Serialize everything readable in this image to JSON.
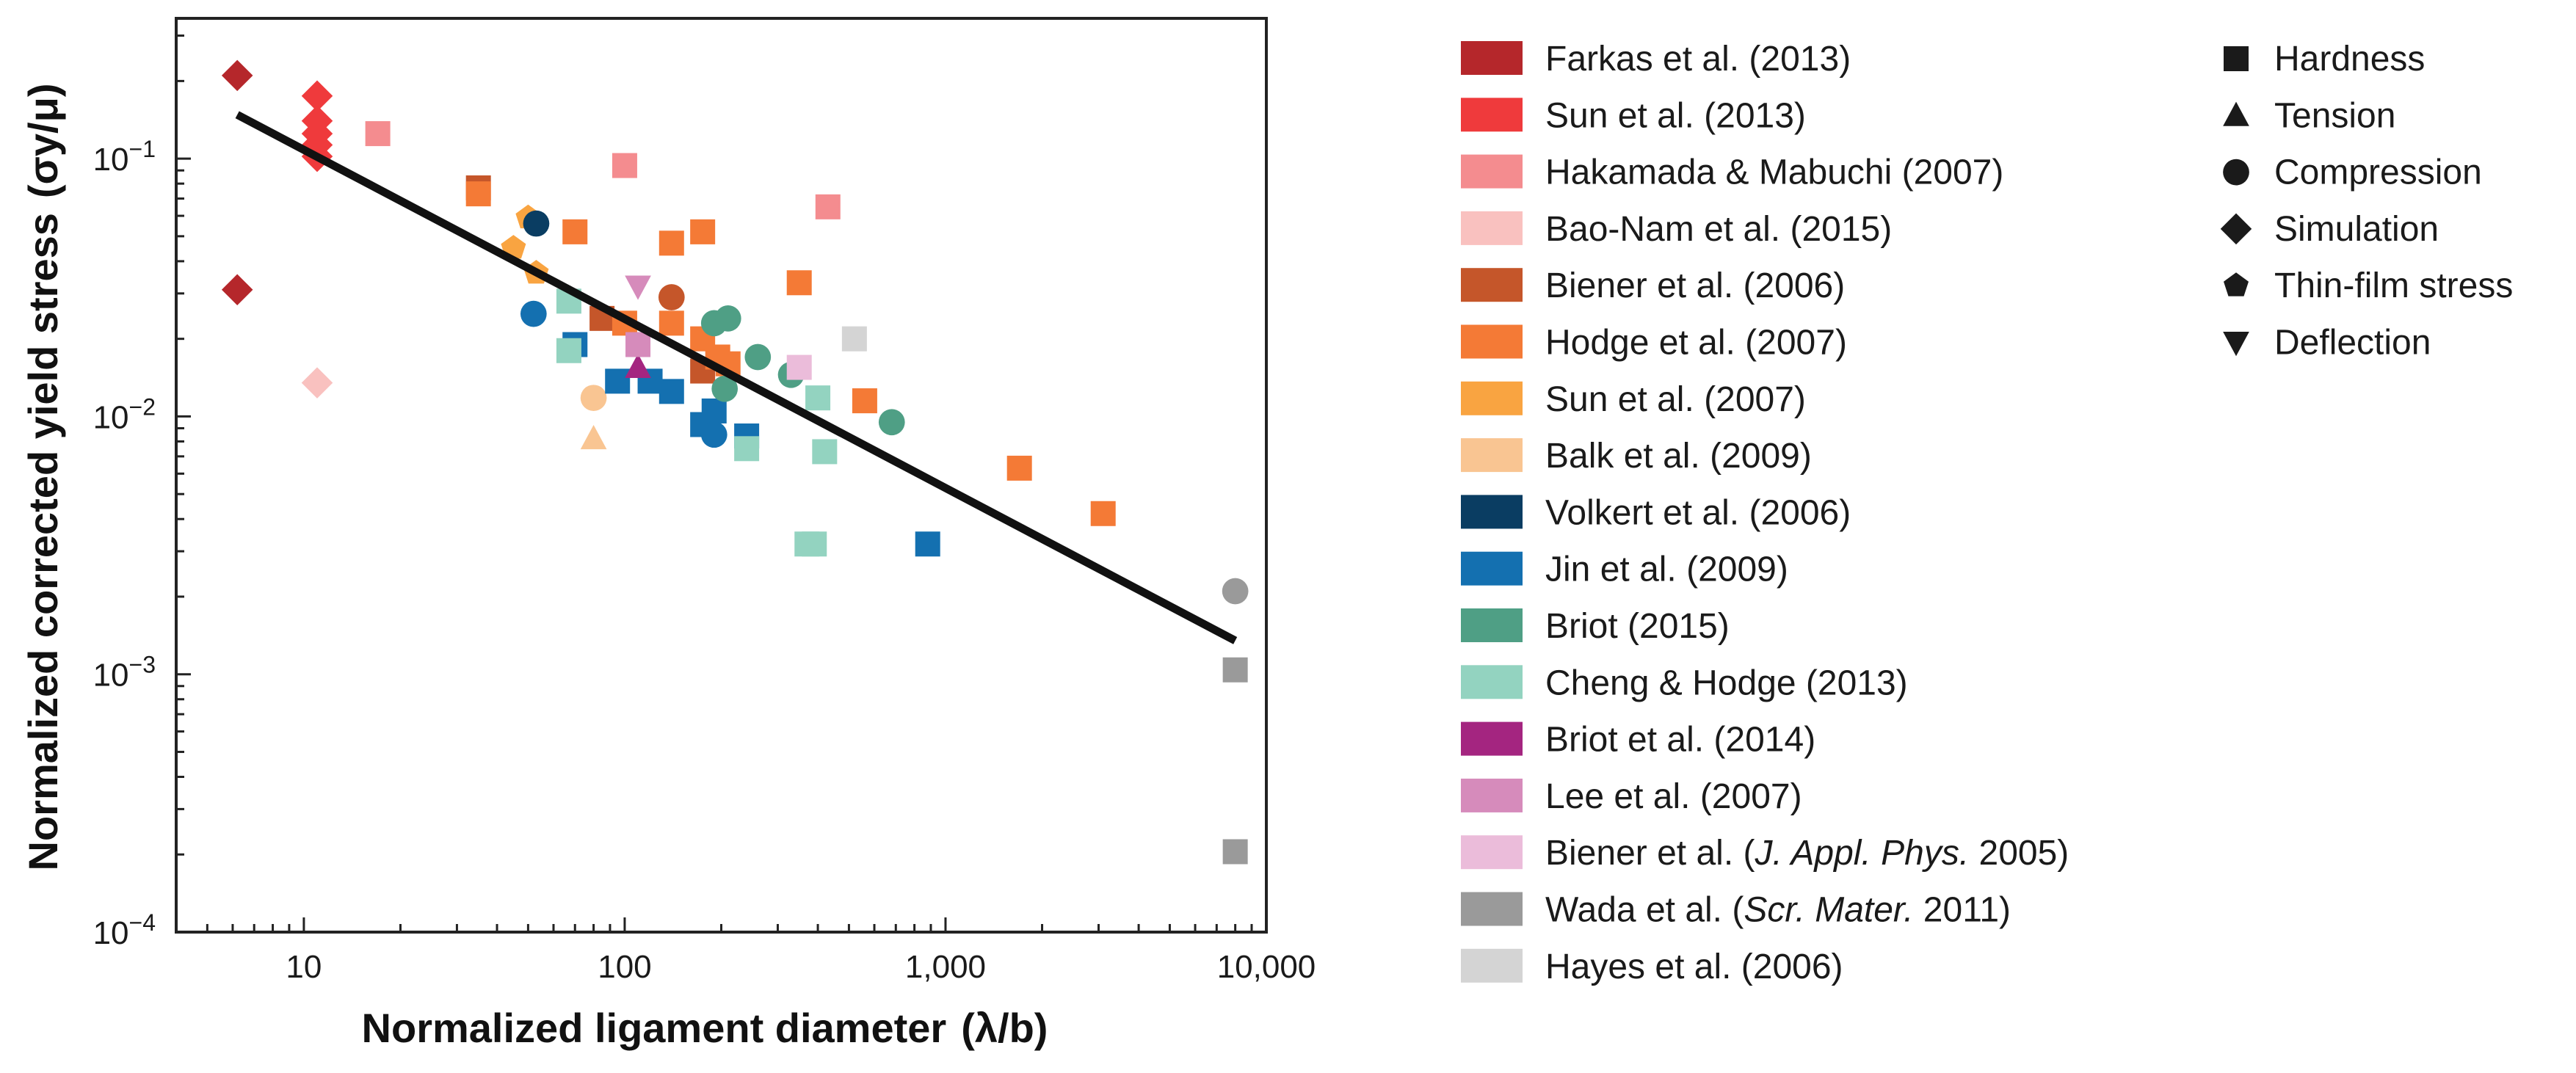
{
  "chart_data": {
    "type": "scatter",
    "xscale": "log",
    "yscale": "log",
    "xlim": [
      4,
      10000
    ],
    "ylim": [
      0.0001,
      0.35
    ],
    "xlabel": "Normalized ligament diameter",
    "xlabel_symbol": "(λ/b)",
    "ylabel": "Normalized corrected yield stress",
    "ylabel_symbol": "(σy/μ)",
    "x_ticks": [
      {
        "value": 10,
        "label": "10"
      },
      {
        "value": 100,
        "label": "100"
      },
      {
        "value": 1000,
        "label": "1,000"
      },
      {
        "value": 10000,
        "label": "10,000"
      }
    ],
    "y_ticks": [
      {
        "value": 0.0001,
        "base": "10",
        "exp": "−4"
      },
      {
        "value": 0.001,
        "base": "10",
        "exp": "−3"
      },
      {
        "value": 0.01,
        "base": "10",
        "exp": "−2"
      },
      {
        "value": 0.1,
        "base": "10",
        "exp": "−1"
      }
    ],
    "fit_line": {
      "x": [
        6.2,
        8000
      ],
      "y": [
        0.148,
        0.00135
      ]
    },
    "series": [
      {
        "name": "Farkas et al. (2013)",
        "label_main": "Farkas et al. (2013)",
        "color": "#b5272b",
        "points": [
          {
            "x": 6.2,
            "y": 0.21,
            "m": "diamond"
          },
          {
            "x": 6.2,
            "y": 0.031,
            "m": "diamond"
          }
        ]
      },
      {
        "name": "Sun et al. (2013)",
        "label_main": "Sun et al. (2013)",
        "color": "#ef3a3c",
        "points": [
          {
            "x": 11,
            "y": 0.175,
            "m": "diamond"
          },
          {
            "x": 11,
            "y": 0.14,
            "m": "diamond"
          },
          {
            "x": 11,
            "y": 0.125,
            "m": "diamond"
          },
          {
            "x": 11,
            "y": 0.113,
            "m": "diamond"
          },
          {
            "x": 11,
            "y": 0.102,
            "m": "diamond"
          }
        ]
      },
      {
        "name": "Hakamada & Mabuchi (2007)",
        "label_main": "Hakamada & Mabuchi (2007)",
        "color": "#f48c8f",
        "points": [
          {
            "x": 17,
            "y": 0.125,
            "m": "square"
          },
          {
            "x": 100,
            "y": 0.094,
            "m": "square"
          },
          {
            "x": 430,
            "y": 0.065,
            "m": "square"
          }
        ]
      },
      {
        "name": "Bao-Nam et al. (2015)",
        "label_main": "Bao-Nam et al. (2015)",
        "color": "#f9c1bf",
        "points": [
          {
            "x": 11,
            "y": 0.0135,
            "m": "diamond"
          }
        ]
      },
      {
        "name": "Biener et al. (2006)",
        "label_main": "Biener et al. (2006)",
        "color": "#c5562a",
        "points": [
          {
            "x": 35,
            "y": 0.077,
            "m": "square"
          },
          {
            "x": 85,
            "y": 0.024,
            "m": "square"
          },
          {
            "x": 140,
            "y": 0.029,
            "m": "circle"
          },
          {
            "x": 175,
            "y": 0.015,
            "m": "square"
          }
        ]
      },
      {
        "name": "Hodge et al. (2007)",
        "label_main": "Hodge et al. (2007)",
        "color": "#f47a36",
        "points": [
          {
            "x": 35,
            "y": 0.073,
            "m": "square"
          },
          {
            "x": 70,
            "y": 0.052,
            "m": "square"
          },
          {
            "x": 100,
            "y": 0.023,
            "m": "square"
          },
          {
            "x": 140,
            "y": 0.047,
            "m": "square"
          },
          {
            "x": 140,
            "y": 0.023,
            "m": "square"
          },
          {
            "x": 175,
            "y": 0.052,
            "m": "square"
          },
          {
            "x": 175,
            "y": 0.02,
            "m": "square"
          },
          {
            "x": 195,
            "y": 0.017,
            "m": "square"
          },
          {
            "x": 210,
            "y": 0.016,
            "m": "square"
          },
          {
            "x": 350,
            "y": 0.033,
            "m": "square"
          },
          {
            "x": 560,
            "y": 0.0115,
            "m": "square"
          },
          {
            "x": 1700,
            "y": 0.0063,
            "m": "square"
          },
          {
            "x": 3100,
            "y": 0.0042,
            "m": "square"
          }
        ]
      },
      {
        "name": "Sun et al. (2007)",
        "label_main": "Sun et al. (2007)",
        "color": "#f9a441",
        "points": [
          {
            "x": 45,
            "y": 0.045,
            "m": "pentagon"
          },
          {
            "x": 50,
            "y": 0.059,
            "m": "pentagon"
          },
          {
            "x": 53,
            "y": 0.036,
            "m": "pentagon"
          }
        ]
      },
      {
        "name": "Balk et al. (2009)",
        "label_main": "Balk et al. (2009)",
        "color": "#f9c592",
        "points": [
          {
            "x": 80,
            "y": 0.0118,
            "m": "circle"
          },
          {
            "x": 80,
            "y": 0.0082,
            "m": "tri-up"
          }
        ]
      },
      {
        "name": "Volkert et al. (2006)",
        "label_main": "Volkert et al. (2006)",
        "color": "#0a3d62",
        "points": [
          {
            "x": 53,
            "y": 0.056,
            "m": "circle"
          }
        ]
      },
      {
        "name": "Jin et al. (2009)",
        "label_main": "Jin et al. (2009)",
        "color": "#1470b0",
        "points": [
          {
            "x": 52,
            "y": 0.025,
            "m": "circle"
          },
          {
            "x": 70,
            "y": 0.019,
            "m": "square"
          },
          {
            "x": 95,
            "y": 0.0137,
            "m": "square"
          },
          {
            "x": 120,
            "y": 0.0137,
            "m": "square"
          },
          {
            "x": 140,
            "y": 0.0125,
            "m": "square"
          },
          {
            "x": 175,
            "y": 0.0093,
            "m": "square"
          },
          {
            "x": 190,
            "y": 0.0105,
            "m": "square"
          },
          {
            "x": 190,
            "y": 0.0085,
            "m": "circle"
          },
          {
            "x": 240,
            "y": 0.0084,
            "m": "square"
          },
          {
            "x": 880,
            "y": 0.0032,
            "m": "square"
          }
        ]
      },
      {
        "name": "Briot (2015)",
        "label_main": "Briot (2015)",
        "color": "#4f9f85",
        "points": [
          {
            "x": 190,
            "y": 0.023,
            "m": "circle"
          },
          {
            "x": 210,
            "y": 0.024,
            "m": "circle"
          },
          {
            "x": 205,
            "y": 0.0128,
            "m": "circle"
          },
          {
            "x": 260,
            "y": 0.017,
            "m": "circle"
          },
          {
            "x": 330,
            "y": 0.0145,
            "m": "circle"
          },
          {
            "x": 680,
            "y": 0.0095,
            "m": "circle"
          }
        ]
      },
      {
        "name": "Cheng & Hodge (2013)",
        "label_main": "Cheng & Hodge (2013)",
        "color": "#93d3c0",
        "points": [
          {
            "x": 67,
            "y": 0.028,
            "m": "square"
          },
          {
            "x": 67,
            "y": 0.018,
            "m": "square"
          },
          {
            "x": 240,
            "y": 0.0075,
            "m": "square"
          },
          {
            "x": 370,
            "y": 0.0032,
            "m": "square"
          },
          {
            "x": 390,
            "y": 0.0032,
            "m": "square"
          },
          {
            "x": 400,
            "y": 0.0118,
            "m": "square"
          },
          {
            "x": 420,
            "y": 0.0073,
            "m": "square"
          }
        ]
      },
      {
        "name": "Briot et al. (2014)",
        "label_main": "Briot et al. (2014)",
        "color": "#a42580",
        "points": [
          {
            "x": 110,
            "y": 0.0155,
            "m": "tri-up"
          }
        ]
      },
      {
        "name": "Lee et al. (2007)",
        "label_main": "Lee et al. (2007)",
        "color": "#d68bbb",
        "points": [
          {
            "x": 110,
            "y": 0.032,
            "m": "tri-down"
          },
          {
            "x": 110,
            "y": 0.019,
            "m": "square"
          }
        ]
      },
      {
        "name": "Biener et al. (J. Appl. Phys. 2005)",
        "label_main": "Biener et al. (",
        "label_italic": "J. Appl. Phys.",
        "label_end": " 2005)",
        "color": "#ebbcda",
        "points": [
          {
            "x": 350,
            "y": 0.0155,
            "m": "square"
          }
        ]
      },
      {
        "name": "Wada et al. (Scr. Mater. 2011)",
        "label_main": "Wada et al. (",
        "label_italic": "Scr. Mater.",
        "label_end": " 2011)",
        "color": "#9a9a9a",
        "points": [
          {
            "x": 8000,
            "y": 0.0021,
            "m": "circle"
          },
          {
            "x": 8000,
            "y": 0.00104,
            "m": "square"
          },
          {
            "x": 8000,
            "y": 0.000205,
            "m": "square"
          }
        ]
      },
      {
        "name": "Hayes et al. (2006)",
        "label_main": "Hayes et al. (2006)",
        "color": "#d4d4d4",
        "points": [
          {
            "x": 520,
            "y": 0.02,
            "m": "square"
          }
        ]
      }
    ],
    "marker_legend": [
      {
        "label": "Hardness",
        "marker": "square"
      },
      {
        "label": "Tension",
        "marker": "tri-up"
      },
      {
        "label": "Compression",
        "marker": "circle"
      },
      {
        "label": "Simulation",
        "marker": "diamond"
      },
      {
        "label": "Thin-film stress",
        "marker": "pentagon"
      },
      {
        "label": "Deflection",
        "marker": "tri-down"
      }
    ]
  }
}
